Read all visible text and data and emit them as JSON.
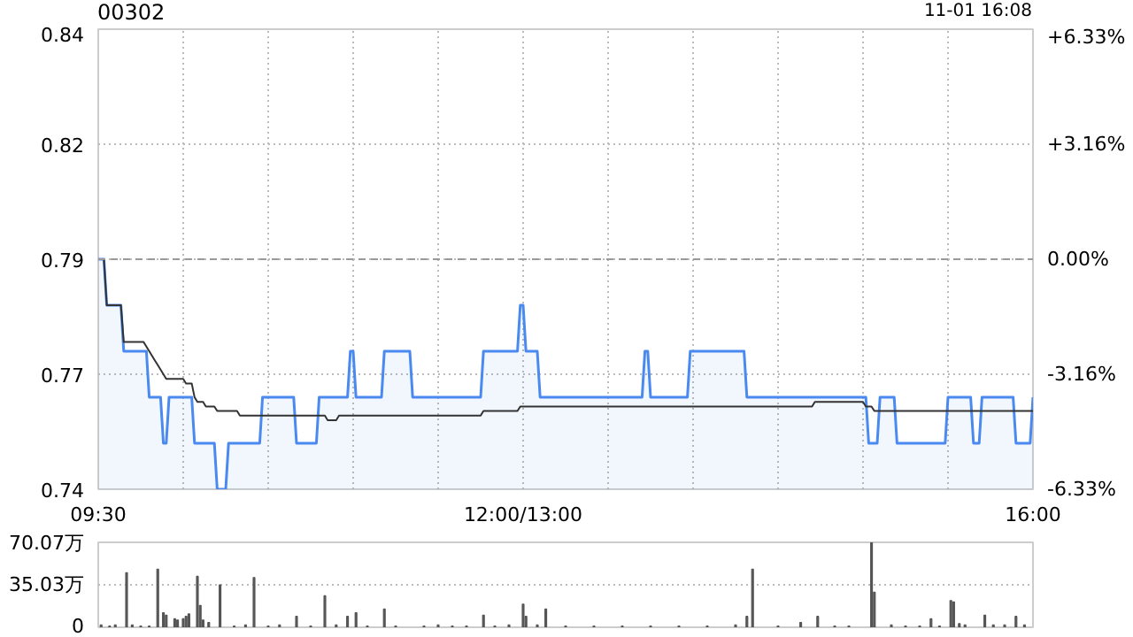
{
  "chart_data": [
    {
      "type": "line",
      "title": "00302",
      "annotations": [
        "11-01 16:08"
      ],
      "categories": [
        "09:30",
        null,
        null,
        null,
        null,
        null,
        null,
        null,
        null,
        null,
        null,
        null,
        null,
        null,
        null,
        null,
        null,
        null,
        null,
        null,
        null,
        null,
        null,
        null,
        null,
        null,
        null,
        null,
        null,
        null,
        null,
        null,
        null,
        null,
        null,
        null,
        null,
        null,
        null,
        null,
        null,
        null,
        null,
        null,
        null,
        null,
        null,
        null,
        null,
        null,
        null,
        null,
        null,
        null,
        null,
        null,
        null,
        null,
        null,
        null,
        null,
        null,
        null,
        null,
        null,
        null,
        null,
        null,
        null,
        null,
        null,
        null,
        null,
        null,
        null,
        null,
        null,
        null,
        null,
        null,
        null,
        null,
        null,
        null,
        null,
        null,
        null,
        null,
        null,
        null,
        null,
        null,
        null,
        null,
        null,
        null,
        null,
        null,
        null,
        null,
        null,
        null,
        null,
        null,
        null,
        null,
        null,
        null,
        null,
        null,
        null,
        null,
        null,
        null,
        null,
        null,
        null,
        null,
        null,
        null,
        null,
        null,
        null,
        null,
        null,
        null,
        null,
        null,
        null,
        null,
        null,
        null,
        null,
        null,
        null,
        null,
        null,
        null,
        null,
        null,
        null,
        null,
        null,
        null,
        null,
        null,
        null,
        null,
        null,
        null,
        "12:00/13:00",
        null,
        null,
        null,
        null,
        null,
        null,
        null,
        null,
        null,
        null,
        null,
        null,
        null,
        null,
        null,
        null,
        null,
        null,
        null,
        null,
        null,
        null,
        null,
        null,
        null,
        null,
        null,
        null,
        null,
        null,
        null,
        null,
        null,
        null,
        null,
        null,
        null,
        null,
        null,
        null,
        null,
        null,
        null,
        null,
        null,
        null,
        null,
        null,
        null,
        null,
        null,
        null,
        null,
        null,
        null,
        null,
        null,
        null,
        null,
        null,
        null,
        null,
        null,
        null,
        null,
        null,
        null,
        null,
        null,
        null,
        null,
        null,
        null,
        null,
        null,
        null,
        null,
        null,
        null,
        null,
        null,
        null,
        null,
        null,
        null,
        null,
        null,
        null,
        null,
        null,
        null,
        null,
        null,
        null,
        null,
        null,
        null,
        null,
        null,
        null,
        null,
        null,
        null,
        null,
        null,
        null,
        null,
        null,
        null,
        null,
        null,
        null,
        null,
        null,
        null,
        null,
        null,
        null,
        null,
        null,
        null,
        null,
        null,
        null,
        null,
        null,
        null,
        null,
        null,
        null,
        null,
        null,
        null,
        null,
        null,
        null,
        null,
        null,
        null,
        null,
        null,
        null,
        null,
        null,
        null,
        null,
        null,
        null,
        null,
        null,
        null,
        null,
        null,
        null,
        null,
        null,
        null,
        null,
        null,
        null,
        null,
        null,
        null,
        null,
        null,
        null,
        null,
        null,
        null,
        null,
        null,
        null,
        null,
        null,
        null,
        null,
        null,
        null,
        null,
        "16:00"
      ],
      "ylim": [
        0.74,
        0.84
      ],
      "yticks": [
        0.74,
        {
          "value": 0.765,
          "label": "0.77"
        },
        0.79,
        {
          "value": 0.815,
          "label": "0.82"
        },
        0.84
      ],
      "y2lim": [
        -6.33,
        6.33
      ],
      "y2ticks": [
        {
          "value": -6.33,
          "label": "-6.33%"
        },
        {
          "value": -3.16,
          "label": "-3.16%"
        },
        {
          "value": 0,
          "label": "0.00%"
        },
        {
          "value": 3.16,
          "label": "+3.16%"
        },
        {
          "value": 6.33,
          "label": "+6.33%"
        }
      ],
      "grid": true,
      "ref_lines": [
        {
          "axis": "y",
          "value": 0.79,
          "color": "#999999",
          "line_style": "dashed"
        }
      ],
      "series": [
        {
          "type": "area",
          "color": "#4a8af0",
          "values": [
            0.79,
            0.79,
            0.79,
            0.78,
            0.78,
            0.78,
            0.78,
            0.78,
            0.78,
            0.77,
            0.77,
            0.77,
            0.77,
            0.77,
            0.77,
            0.77,
            0.77,
            0.77,
            0.76,
            0.76,
            0.76,
            0.76,
            0.76,
            0.75,
            0.75,
            0.76,
            0.76,
            0.76,
            0.76,
            0.76,
            0.76,
            0.76,
            0.76,
            0.76,
            0.75,
            0.75,
            0.75,
            0.75,
            0.75,
            0.75,
            0.75,
            0.75,
            0.74,
            0.74,
            0.74,
            0.74,
            0.75,
            0.75,
            0.75,
            0.75,
            0.75,
            0.75,
            0.75,
            0.75,
            0.75,
            0.75,
            0.75,
            0.75,
            0.76,
            0.76,
            0.76,
            0.76,
            0.76,
            0.76,
            0.76,
            0.76,
            0.76,
            0.76,
            0.76,
            0.76,
            0.75,
            0.75,
            0.75,
            0.75,
            0.75,
            0.75,
            0.75,
            0.75,
            0.76,
            0.76,
            0.76,
            0.76,
            0.76,
            0.76,
            0.76,
            0.76,
            0.76,
            0.76,
            0.76,
            0.77,
            0.77,
            0.76,
            0.76,
            0.76,
            0.76,
            0.76,
            0.76,
            0.76,
            0.76,
            0.76,
            0.76,
            0.77,
            0.77,
            0.77,
            0.77,
            0.77,
            0.77,
            0.77,
            0.77,
            0.77,
            0.77,
            0.76,
            0.76,
            0.76,
            0.76,
            0.76,
            0.76,
            0.76,
            0.76,
            0.76,
            0.76,
            0.76,
            0.76,
            0.76,
            0.76,
            0.76,
            0.76,
            0.76,
            0.76,
            0.76,
            0.76,
            0.76,
            0.76,
            0.76,
            0.76,
            0.76,
            0.77,
            0.77,
            0.77,
            0.77,
            0.77,
            0.77,
            0.77,
            0.77,
            0.77,
            0.77,
            0.77,
            0.77,
            0.77,
            0.78,
            0.78,
            0.77,
            0.77,
            0.77,
            0.77,
            0.77,
            0.76,
            0.76,
            0.76,
            0.76,
            0.76,
            0.76,
            0.76,
            0.76,
            0.76,
            0.76,
            0.76,
            0.76,
            0.76,
            0.76,
            0.76,
            0.76,
            0.76,
            0.76,
            0.76,
            0.76,
            0.76,
            0.76,
            0.76,
            0.76,
            0.76,
            0.76,
            0.76,
            0.76,
            0.76,
            0.76,
            0.76,
            0.76,
            0.76,
            0.76,
            0.76,
            0.76,
            0.76,
            0.77,
            0.77,
            0.76,
            0.76,
            0.76,
            0.76,
            0.76,
            0.76,
            0.76,
            0.76,
            0.76,
            0.76,
            0.76,
            0.76,
            0.76,
            0.76,
            0.77,
            0.77,
            0.77,
            0.77,
            0.77,
            0.77,
            0.77,
            0.77,
            0.77,
            0.77,
            0.77,
            0.77,
            0.77,
            0.77,
            0.77,
            0.77,
            0.77,
            0.77,
            0.77,
            0.77,
            0.76,
            0.76,
            0.76,
            0.76,
            0.76,
            0.76,
            0.76,
            0.76,
            0.76,
            0.76,
            0.76,
            0.76,
            0.76,
            0.76,
            0.76,
            0.76,
            0.76,
            0.76,
            0.76,
            0.76,
            0.76,
            0.76,
            0.76,
            0.76,
            0.76,
            0.76,
            0.76,
            0.76,
            0.76,
            0.76,
            0.76,
            0.76,
            0.76,
            0.76,
            0.76,
            0.76,
            0.76,
            0.76,
            0.76,
            0.76,
            0.76,
            0.76,
            0.76,
            0.75,
            0.75,
            0.75,
            0.75,
            0.76,
            0.76,
            0.76,
            0.76,
            0.76,
            0.76,
            0.75,
            0.75,
            0.75,
            0.75,
            0.75,
            0.75,
            0.75,
            0.75,
            0.75,
            0.75,
            0.75,
            0.75,
            0.75,
            0.75,
            0.75,
            0.75,
            0.75,
            0.75,
            0.76,
            0.76,
            0.76,
            0.76,
            0.76,
            0.76,
            0.76,
            0.76,
            0.76,
            0.75,
            0.75,
            0.75,
            0.76,
            0.76,
            0.76,
            0.76,
            0.76,
            0.76,
            0.76,
            0.76,
            0.76,
            0.76,
            0.76,
            0.76,
            0.75,
            0.75,
            0.75,
            0.75,
            0.75,
            0.75,
            0.76
          ]
        },
        {
          "type": "line",
          "color": "#333333",
          "values": [
            0.79,
            0.79,
            0.79,
            0.78,
            0.78,
            0.78,
            0.78,
            0.78,
            0.78,
            0.772,
            0.772,
            0.772,
            0.772,
            0.772,
            0.772,
            0.772,
            0.772,
            0.771,
            0.77,
            0.769,
            0.768,
            0.767,
            0.766,
            0.765,
            0.764,
            0.764,
            0.764,
            0.764,
            0.764,
            0.764,
            0.764,
            0.763,
            0.763,
            0.763,
            0.76,
            0.759,
            0.759,
            0.759,
            0.758,
            0.758,
            0.758,
            0.758,
            0.757,
            0.757,
            0.757,
            0.757,
            0.757,
            0.757,
            0.757,
            0.757,
            0.756,
            0.756,
            0.756,
            0.756,
            0.756,
            0.756,
            0.756,
            0.756,
            0.756,
            0.756,
            0.756,
            0.756,
            0.756,
            0.756,
            0.756,
            0.756,
            0.756,
            0.756,
            0.756,
            0.756,
            0.756,
            0.756,
            0.756,
            0.756,
            0.756,
            0.756,
            0.756,
            0.756,
            0.756,
            0.756,
            0.756,
            0.755,
            0.755,
            0.755,
            0.755,
            0.756,
            0.756,
            0.756,
            0.756,
            0.756,
            0.756,
            0.756,
            0.756,
            0.756,
            0.756,
            0.756,
            0.756,
            0.756,
            0.756,
            0.756,
            0.756,
            0.756,
            0.756,
            0.756,
            0.756,
            0.756,
            0.756,
            0.756,
            0.756,
            0.756,
            0.756,
            0.756,
            0.756,
            0.756,
            0.756,
            0.756,
            0.756,
            0.756,
            0.756,
            0.756,
            0.756,
            0.756,
            0.756,
            0.756,
            0.756,
            0.756,
            0.756,
            0.756,
            0.756,
            0.756,
            0.756,
            0.756,
            0.756,
            0.756,
            0.756,
            0.756,
            0.757,
            0.757,
            0.757,
            0.757,
            0.757,
            0.757,
            0.757,
            0.757,
            0.757,
            0.757,
            0.757,
            0.757,
            0.757,
            0.758,
            0.758,
            0.758,
            0.758,
            0.758,
            0.758,
            0.758,
            0.758,
            0.758,
            0.758,
            0.758,
            0.758,
            0.758,
            0.758,
            0.758,
            0.758,
            0.758,
            0.758,
            0.758,
            0.758,
            0.758,
            0.758,
            0.758,
            0.758,
            0.758,
            0.758,
            0.758,
            0.758,
            0.758,
            0.758,
            0.758,
            0.758,
            0.758,
            0.758,
            0.758,
            0.758,
            0.758,
            0.758,
            0.758,
            0.758,
            0.758,
            0.758,
            0.758,
            0.758,
            0.758,
            0.758,
            0.758,
            0.758,
            0.758,
            0.758,
            0.758,
            0.758,
            0.758,
            0.758,
            0.758,
            0.758,
            0.758,
            0.758,
            0.758,
            0.758,
            0.758,
            0.758,
            0.758,
            0.758,
            0.758,
            0.758,
            0.758,
            0.758,
            0.758,
            0.758,
            0.758,
            0.758,
            0.758,
            0.758,
            0.758,
            0.758,
            0.758,
            0.758,
            0.758,
            0.758,
            0.758,
            0.758,
            0.758,
            0.758,
            0.758,
            0.758,
            0.758,
            0.758,
            0.758,
            0.758,
            0.758,
            0.758,
            0.758,
            0.758,
            0.758,
            0.758,
            0.758,
            0.758,
            0.758,
            0.758,
            0.758,
            0.758,
            0.758,
            0.758,
            0.759,
            0.759,
            0.759,
            0.759,
            0.759,
            0.759,
            0.759,
            0.759,
            0.759,
            0.759,
            0.759,
            0.759,
            0.759,
            0.759,
            0.759,
            0.759,
            0.759,
            0.759,
            0.758,
            0.758,
            0.758,
            0.757,
            0.757,
            0.757,
            0.757,
            0.757,
            0.757,
            0.757,
            0.757,
            0.757,
            0.757,
            0.757,
            0.757,
            0.757,
            0.757,
            0.757,
            0.757,
            0.757,
            0.757,
            0.757,
            0.757,
            0.757,
            0.757,
            0.757,
            0.757,
            0.757,
            0.757,
            0.757,
            0.757,
            0.757,
            0.757,
            0.757,
            0.757,
            0.757,
            0.757,
            0.757,
            0.757,
            0.757,
            0.757,
            0.757,
            0.757,
            0.757,
            0.757,
            0.757,
            0.757,
            0.757,
            0.757,
            0.757,
            0.757,
            0.757,
            0.757,
            0.757,
            0.757,
            0.757,
            0.757,
            0.757,
            0.757,
            0.757
          ]
        }
      ]
    },
    {
      "type": "bar",
      "color": "#555555",
      "tick_labels": "y",
      "categories": [
        null,
        null,
        null,
        null,
        null,
        null,
        null,
        null,
        null,
        null,
        null,
        null,
        null,
        null,
        null,
        null,
        null,
        null,
        null,
        null,
        null,
        null,
        null,
        null,
        null,
        null,
        null,
        null,
        null,
        null,
        null,
        null,
        null,
        null,
        null,
        null,
        null,
        null,
        null,
        null,
        null,
        null,
        null,
        null,
        null,
        null,
        null,
        null,
        null,
        null,
        null,
        null,
        null,
        null,
        null,
        null,
        null,
        null,
        null,
        null,
        null,
        null,
        null,
        null,
        null,
        null,
        null,
        null,
        null,
        null,
        null,
        null,
        null,
        null,
        null,
        null,
        null,
        null,
        null,
        null,
        null,
        null,
        null,
        null,
        null,
        null,
        null,
        null,
        null,
        null,
        null,
        null,
        null,
        null,
        null,
        null,
        null,
        null,
        null,
        null,
        null,
        null,
        null,
        null,
        null,
        null,
        null,
        null,
        null,
        null,
        null,
        null,
        null,
        null,
        null,
        null,
        null,
        null,
        null,
        null,
        null,
        null,
        null,
        null,
        null,
        null,
        null,
        null,
        null,
        null,
        null,
        null,
        null,
        null,
        null,
        null,
        null,
        null,
        null,
        null,
        null,
        null,
        null,
        null,
        null,
        null,
        null,
        null,
        null,
        null,
        null,
        null,
        null,
        null,
        null,
        null,
        null,
        null,
        null,
        null,
        null,
        null,
        null,
        null,
        null,
        null,
        null,
        null,
        null,
        null,
        null,
        null,
        null,
        null,
        null,
        null,
        null,
        null,
        null,
        null,
        null,
        null,
        null,
        null,
        null,
        null,
        null,
        null,
        null,
        null,
        null,
        null,
        null,
        null,
        null,
        null,
        null,
        null,
        null,
        null,
        null,
        null,
        null,
        null,
        null,
        null,
        null,
        null,
        null,
        null,
        null,
        null,
        null,
        null,
        null,
        null,
        null,
        null,
        null,
        null,
        null,
        null,
        null,
        null,
        null,
        null,
        null,
        null,
        null,
        null,
        null,
        null,
        null,
        null,
        null,
        null,
        null,
        null,
        null,
        null,
        null,
        null,
        null,
        null,
        null,
        null,
        null,
        null,
        null,
        null,
        null,
        null,
        null,
        null,
        null,
        null,
        null,
        null,
        null,
        null,
        null,
        null,
        null,
        null,
        null,
        null,
        null,
        null,
        null,
        null,
        null,
        null,
        null,
        null,
        null,
        null,
        null,
        null,
        null,
        null,
        null,
        null,
        null,
        null,
        null,
        null,
        null,
        null,
        null,
        null,
        null,
        null,
        null,
        null,
        null,
        null,
        null,
        null,
        null,
        null,
        null,
        null,
        null,
        null,
        null,
        null,
        null,
        null,
        null,
        null,
        null,
        null,
        null,
        null,
        null,
        null,
        null,
        null,
        null,
        null,
        null,
        null,
        null,
        null,
        null,
        null,
        null,
        null,
        null,
        null,
        null
      ],
      "ylim": [
        0,
        70.07
      ],
      "yticks": [
        0,
        {
          "value": 35.03,
          "label": "35.03万"
        },
        {
          "value": 70.07,
          "label": "70.07万"
        }
      ],
      "grid": "y",
      "values": [
        null,
        2,
        null,
        null,
        1,
        null,
        2,
        null,
        null,
        null,
        45,
        null,
        2,
        null,
        null,
        1,
        null,
        null,
        1,
        null,
        null,
        48,
        null,
        12,
        10,
        null,
        null,
        7,
        6,
        null,
        7,
        9,
        11,
        null,
        null,
        42,
        18,
        6,
        null,
        4,
        null,
        null,
        null,
        35,
        null,
        null,
        null,
        null,
        1,
        null,
        null,
        null,
        2,
        null,
        null,
        41,
        null,
        null,
        null,
        null,
        1,
        null,
        null,
        null,
        2,
        null,
        null,
        null,
        null,
        null,
        9,
        null,
        null,
        null,
        null,
        1,
        null,
        null,
        null,
        null,
        26,
        null,
        null,
        null,
        2,
        null,
        null,
        null,
        9,
        null,
        null,
        12,
        null,
        null,
        null,
        1,
        null,
        null,
        null,
        null,
        null,
        15,
        null,
        null,
        null,
        1,
        null,
        null,
        null,
        null,
        null,
        null,
        null,
        null,
        null,
        1,
        null,
        null,
        null,
        null,
        2,
        null,
        null,
        null,
        null,
        1,
        null,
        null,
        null,
        null,
        1,
        null,
        null,
        null,
        null,
        null,
        10,
        null,
        null,
        null,
        1,
        null,
        null,
        null,
        null,
        2,
        null,
        null,
        null,
        null,
        19,
        9,
        null,
        null,
        null,
        2,
        null,
        null,
        15,
        null,
        null,
        null,
        null,
        null,
        null,
        1,
        null,
        null,
        null,
        null,
        null,
        null,
        null,
        null,
        null,
        1,
        null,
        null,
        null,
        null,
        null,
        null,
        null,
        null,
        null,
        1,
        null,
        null,
        null,
        null,
        null,
        null,
        null,
        null,
        null,
        1,
        null,
        null,
        null,
        null,
        null,
        null,
        null,
        null,
        null,
        1,
        null,
        null,
        null,
        null,
        null,
        null,
        null,
        null,
        null,
        1,
        null,
        null,
        null,
        null,
        null,
        null,
        null,
        null,
        null,
        2,
        null,
        null,
        null,
        9,
        null,
        48,
        null,
        null,
        null,
        null,
        null,
        null,
        null,
        null,
        1,
        null,
        null,
        null,
        null,
        null,
        null,
        null,
        4,
        null,
        null,
        null,
        null,
        null,
        9,
        null,
        null,
        null,
        null,
        null,
        1,
        null,
        null,
        null,
        null,
        1,
        null,
        null,
        null,
        null,
        null,
        null,
        null,
        70,
        29,
        null,
        null,
        null,
        null,
        null,
        2,
        null,
        null,
        null,
        null,
        1,
        null,
        null,
        null,
        null,
        1,
        null,
        null,
        null,
        7,
        null,
        null,
        1,
        null,
        null,
        null,
        22,
        21,
        null,
        3,
        null,
        2,
        null,
        null,
        null,
        null,
        null,
        null,
        10,
        null,
        null,
        2,
        null,
        null,
        null,
        2,
        null,
        null,
        null,
        9,
        null,
        null,
        2,
        null,
        null,
        null
      ]
    }
  ]
}
